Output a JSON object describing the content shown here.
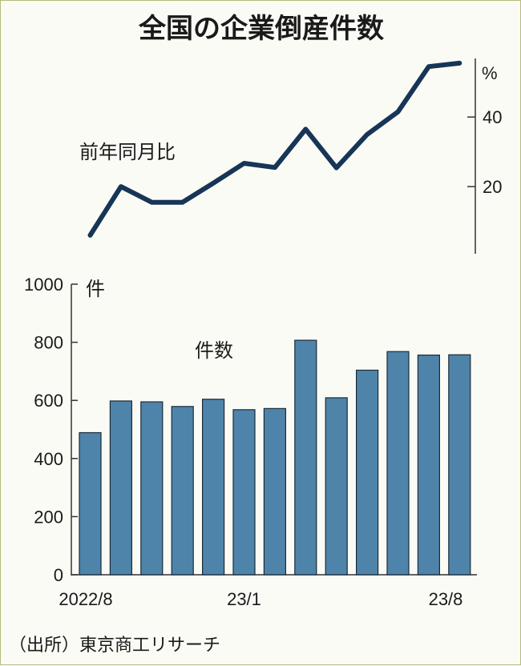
{
  "title": "全国の企業倒産件数",
  "source": "（出所）東京商工リサーチ",
  "colors": {
    "line": "#173556",
    "bar": "#4f84aa",
    "bar_stroke": "#1a2a38",
    "axis": "#333333"
  },
  "chart_data": [
    {
      "type": "line",
      "label": "前年同月比",
      "unit": "%",
      "x": [
        "2022/8",
        "2022/9",
        "2022/10",
        "2022/11",
        "2022/12",
        "23/1",
        "23/2",
        "23/3",
        "23/4",
        "23/5",
        "23/6",
        "23/7",
        "23/8"
      ],
      "values": [
        6,
        20,
        15.5,
        15.5,
        21,
        26.7,
        25.5,
        36.5,
        25.4,
        35,
        41.5,
        54.5,
        55.5
      ],
      "yticks": [
        20,
        40
      ],
      "ylim": [
        0,
        58
      ]
    },
    {
      "type": "bar",
      "label": "件数",
      "unit": "件",
      "x": [
        "2022/8",
        "2022/9",
        "2022/10",
        "2022/11",
        "2022/12",
        "23/1",
        "23/2",
        "23/3",
        "23/4",
        "23/5",
        "23/6",
        "23/7",
        "23/8"
      ],
      "values": [
        489,
        598,
        595,
        579,
        604,
        568,
        572,
        807,
        609,
        704,
        768,
        756,
        757
      ],
      "yticks": [
        0,
        200,
        400,
        600,
        800,
        1000
      ],
      "ylim": [
        0,
        1000
      ],
      "xtick_labels": [
        "2022/8",
        "23/1",
        "23/8"
      ]
    }
  ]
}
